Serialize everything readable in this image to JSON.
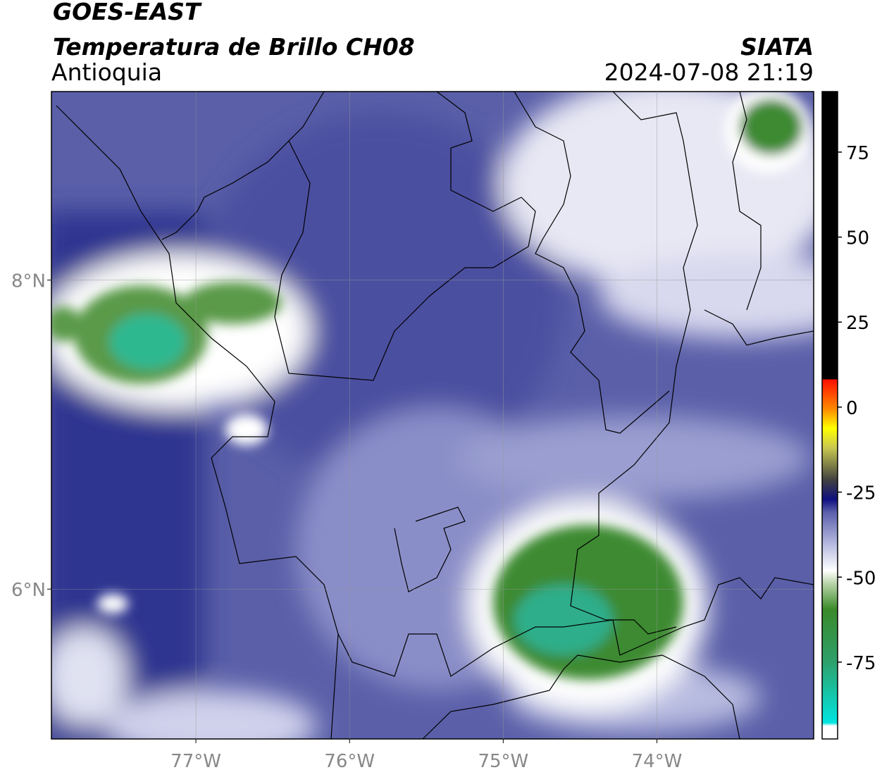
{
  "map": {
    "title": "GOES-EAST",
    "subtitle": "Temperatura de Brillo CH08",
    "region": "Antioquia",
    "source": "SIATA",
    "datetime": "2024-07-08 21:19",
    "lonlim": [
      -77.94,
      -72.98
    ],
    "latlim": [
      5.03,
      9.22
    ],
    "lon_ticks": [
      {
        "value": -77,
        "label": "77°W"
      },
      {
        "value": -76,
        "label": "76°W"
      },
      {
        "value": -75,
        "label": "75°W"
      },
      {
        "value": -74,
        "label": "74°W"
      }
    ],
    "lat_ticks": [
      {
        "value": 8,
        "label": "8°N"
      },
      {
        "value": 6,
        "label": "6°N"
      }
    ],
    "grid": true
  },
  "colorbar": {
    "lim": [
      -97.6,
      92.8
    ],
    "ticks": [
      75,
      50,
      25,
      0,
      -25,
      -50,
      -75
    ]
  }
}
